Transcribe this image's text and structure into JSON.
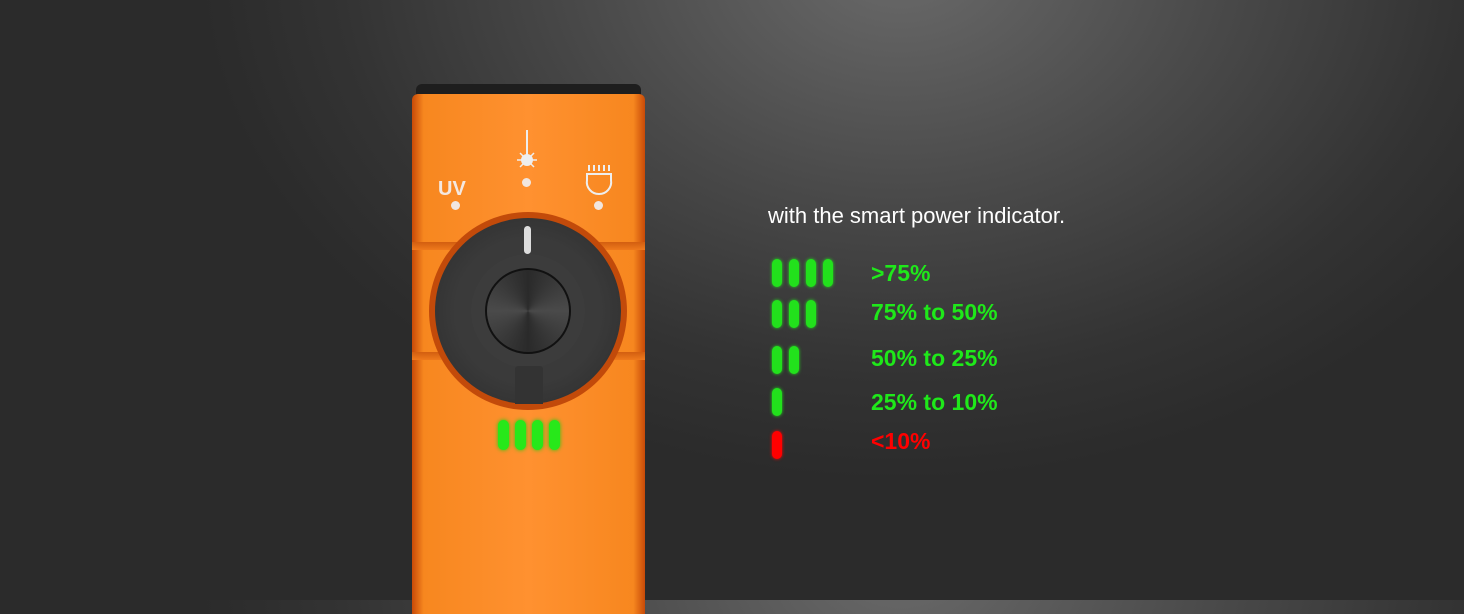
{
  "headline": "with the smart power indicator.",
  "device": {
    "mode_labels": [
      "UV",
      "laser",
      "floodlight"
    ],
    "uv_label": "UV",
    "battery_level_bars": 4,
    "led_color": "#27e81a",
    "body_color": "#ff9130"
  },
  "legend": [
    {
      "bars": 4,
      "label": ">75%",
      "color": "#1fe81a"
    },
    {
      "bars": 3,
      "label": "75% to 50%",
      "color": "#1fe81a"
    },
    {
      "bars": 2,
      "label": "50% to 25%",
      "color": "#1fe81a"
    },
    {
      "bars": 1,
      "label": "25% to 10%",
      "color": "#1fe81a"
    },
    {
      "bars": 1,
      "label": "<10%",
      "color": "#ff0000"
    }
  ]
}
